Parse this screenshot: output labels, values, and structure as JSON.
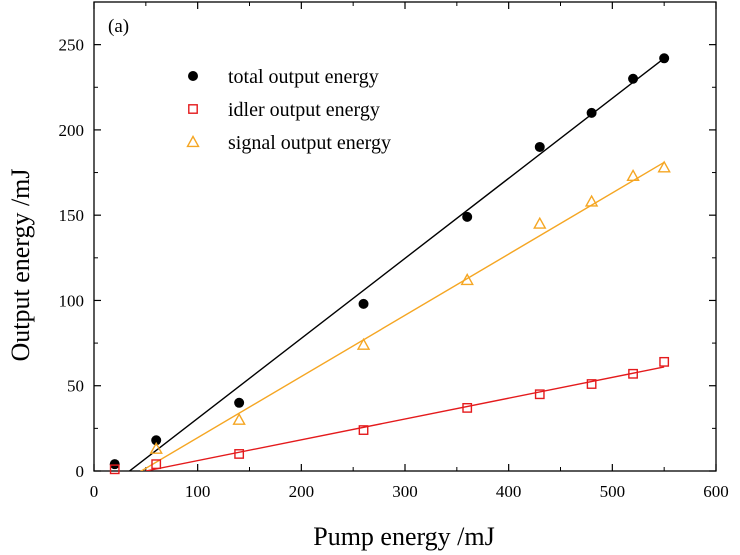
{
  "chart_data": {
    "type": "scatter",
    "panel_label": "(a)",
    "xlabel": "Pump energy /mJ",
    "ylabel": "Output energy /mJ",
    "xlim": [
      0,
      600
    ],
    "ylim": [
      0,
      275
    ],
    "xticks": [
      0,
      100,
      200,
      300,
      400,
      500,
      600
    ],
    "yticks": [
      0,
      50,
      100,
      150,
      200,
      250
    ],
    "grid": false,
    "legend_position": "top-left",
    "series": [
      {
        "name": "total output energy",
        "marker": "filled-circle",
        "color": "#000000",
        "line_color": "#000000",
        "x": [
          20,
          60,
          140,
          260,
          360,
          430,
          480,
          520,
          550
        ],
        "y": [
          4,
          18,
          40,
          98,
          149,
          190,
          210,
          230,
          242
        ],
        "fit_line": {
          "x": [
            30,
            550
          ],
          "y": [
            -2,
            242
          ]
        }
      },
      {
        "name": "idler output energy",
        "marker": "open-square",
        "color": "#e41a1c",
        "line_color": "#e41a1c",
        "x": [
          20,
          60,
          140,
          260,
          360,
          430,
          480,
          520,
          550
        ],
        "y": [
          1,
          4,
          10,
          24,
          37,
          45,
          51,
          57,
          64
        ],
        "fit_line": {
          "x": [
            50,
            550
          ],
          "y": [
            0,
            61
          ]
        }
      },
      {
        "name": "signal output energy",
        "marker": "open-triangle",
        "color": "#f5a623",
        "line_color": "#f5a623",
        "x": [
          60,
          140,
          260,
          360,
          430,
          480,
          520,
          550
        ],
        "y": [
          13,
          30,
          74,
          112,
          145,
          158,
          173,
          178
        ],
        "fit_line": {
          "x": [
            40,
            550
          ],
          "y": [
            -2,
            181
          ]
        }
      }
    ]
  }
}
